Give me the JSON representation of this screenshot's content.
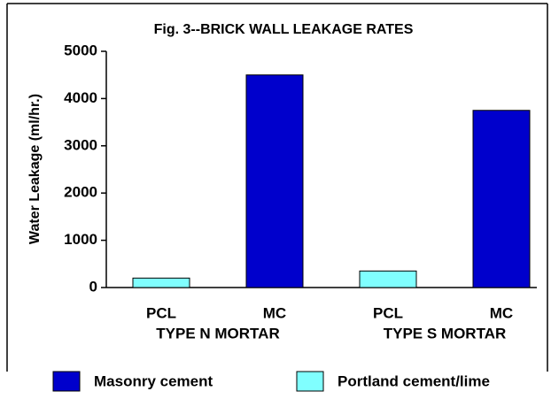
{
  "chart_data": {
    "type": "bar",
    "title": "Fig. 3--BRICK WALL LEAKAGE RATES",
    "y_label": "Water Leakage (ml/hr.)",
    "categories": [
      "PCL",
      "MC",
      "PCL",
      "MC"
    ],
    "group_labels": [
      "TYPE N MORTAR",
      "TYPE S MORTAR"
    ],
    "series": [
      {
        "name": "Masonry cement",
        "color": "#0000cc",
        "values": [
          null,
          4500,
          null,
          3750
        ]
      },
      {
        "name": "Portland cement/lime",
        "color": "#80ffff",
        "values": [
          200,
          null,
          350,
          null
        ]
      }
    ],
    "ylim": [
      0,
      5000
    ],
    "yticks": [
      0,
      1000,
      2000,
      3000,
      4000,
      5000
    ],
    "grid": false,
    "legend": "bottom"
  }
}
